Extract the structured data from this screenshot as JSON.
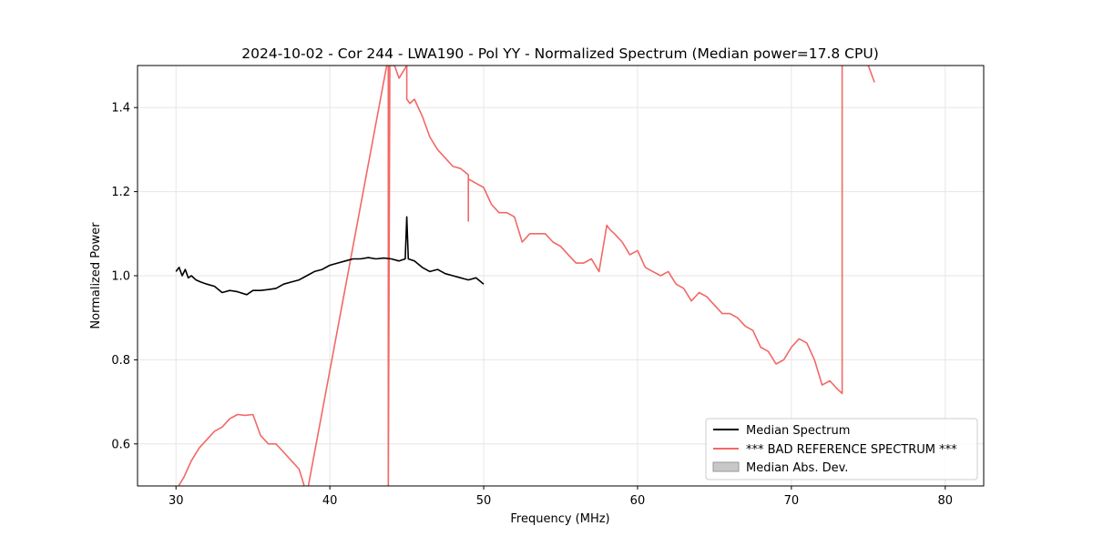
{
  "chart_data": {
    "type": "line",
    "title": "2024-10-02 - Cor 244 - LWA190 - Pol YY - Normalized Spectrum (Median power=17.8 CPU)",
    "xlabel": "Frequency (MHz)",
    "ylabel": "Normalized Power",
    "xlim": [
      27.5,
      82.5
    ],
    "ylim": [
      0.5,
      1.5
    ],
    "xticks": [
      30,
      40,
      50,
      60,
      70,
      80
    ],
    "yticks": [
      0.6,
      0.8,
      1.0,
      1.2,
      1.4
    ],
    "xtick_labels": [
      "30",
      "40",
      "50",
      "60",
      "70",
      "80"
    ],
    "ytick_labels": [
      "0.6",
      "0.8",
      "1.0",
      "1.2",
      "1.4"
    ],
    "grid": true,
    "legend_position": "lower-right",
    "series": [
      {
        "name": "Median Spectrum",
        "color": "#000000",
        "x": [
          30.0,
          30.2,
          30.4,
          30.6,
          30.8,
          31.0,
          31.3,
          31.6,
          32.0,
          32.5,
          33.0,
          33.5,
          34.0,
          34.6,
          35.0,
          35.5,
          36.0,
          36.5,
          37.0,
          37.5,
          38.0,
          38.5,
          39.0,
          39.5,
          40.0,
          40.5,
          41.0,
          41.5,
          42.0,
          42.5,
          43.0,
          43.5,
          44.0,
          44.5,
          44.9,
          45.0,
          45.1,
          45.5,
          46.0,
          46.5,
          47.0,
          47.5,
          48.0,
          48.5,
          49.0,
          49.5,
          50.0
        ],
        "values": [
          1.01,
          1.02,
          1.0,
          1.015,
          0.995,
          1.0,
          0.99,
          0.985,
          0.98,
          0.975,
          0.96,
          0.965,
          0.962,
          0.955,
          0.965,
          0.965,
          0.967,
          0.97,
          0.98,
          0.985,
          0.99,
          1.0,
          1.01,
          1.015,
          1.025,
          1.03,
          1.035,
          1.04,
          1.04,
          1.043,
          1.04,
          1.042,
          1.04,
          1.035,
          1.04,
          1.14,
          1.04,
          1.035,
          1.02,
          1.01,
          1.015,
          1.005,
          1.0,
          0.995,
          0.99,
          0.995,
          0.98
        ]
      },
      {
        "name": "*** BAD REFERENCE SPECTRUM ***",
        "color": "#f26866",
        "x": [
          30.0,
          30.5,
          31.0,
          31.5,
          32.0,
          32.5,
          33.0,
          33.5,
          34.0,
          34.5,
          35.0,
          35.5,
          36.0,
          36.5,
          37.0,
          37.5,
          38.0,
          38.5,
          43.8,
          43.8,
          43.9,
          44.2,
          44.5,
          45.0,
          45.0,
          45.2,
          45.5,
          46.0,
          46.5,
          47.0,
          47.5,
          48.0,
          48.5,
          49.0,
          49.0,
          49.0,
          49.5,
          50.0,
          50.5,
          51.0,
          51.5,
          52.0,
          52.5,
          53.0,
          53.5,
          54.0,
          54.5,
          55.0,
          55.5,
          56.0,
          56.5,
          57.0,
          57.5,
          58.0,
          58.2,
          58.5,
          59.0,
          59.5,
          60.0,
          60.5,
          61.0,
          61.5,
          62.0,
          62.5,
          63.0,
          63.5,
          64.0,
          64.5,
          65.0,
          65.5,
          66.0,
          66.5,
          67.0,
          67.5,
          68.0,
          68.5,
          69.0,
          69.5,
          70.0,
          70.5,
          71.0,
          71.5,
          72.0,
          72.5,
          73.0,
          73.3,
          73.3,
          73.5,
          74.0,
          74.5,
          75.0,
          75.4
        ],
        "values": [
          0.49,
          0.52,
          0.56,
          0.59,
          0.61,
          0.63,
          0.64,
          0.66,
          0.67,
          0.668,
          0.67,
          0.62,
          0.6,
          0.6,
          0.58,
          0.56,
          0.54,
          0.48,
          1.52,
          0.48,
          1.5,
          1.5,
          1.47,
          1.5,
          1.42,
          1.41,
          1.42,
          1.38,
          1.33,
          1.3,
          1.28,
          1.26,
          1.255,
          1.24,
          1.13,
          1.23,
          1.22,
          1.21,
          1.17,
          1.15,
          1.15,
          1.14,
          1.08,
          1.1,
          1.1,
          1.1,
          1.08,
          1.07,
          1.05,
          1.03,
          1.03,
          1.04,
          1.01,
          1.12,
          1.11,
          1.1,
          1.08,
          1.05,
          1.06,
          1.02,
          1.01,
          1.0,
          1.01,
          0.98,
          0.97,
          0.94,
          0.96,
          0.95,
          0.93,
          0.91,
          0.91,
          0.9,
          0.88,
          0.87,
          0.83,
          0.82,
          0.79,
          0.8,
          0.83,
          0.85,
          0.84,
          0.8,
          0.74,
          0.75,
          0.73,
          0.72,
          1.55,
          1.55,
          1.55,
          1.55,
          1.5,
          1.46
        ]
      },
      {
        "name": "Median Abs. Dev.",
        "color": "#b3b3b3",
        "x": [],
        "values": []
      }
    ]
  }
}
